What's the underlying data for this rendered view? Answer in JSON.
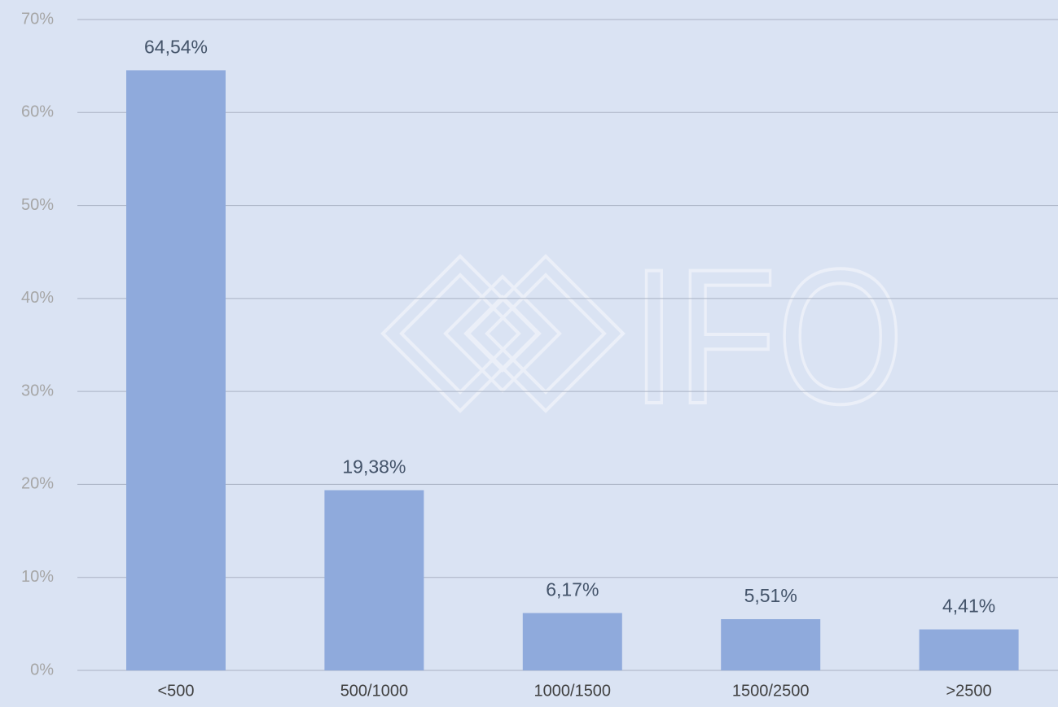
{
  "chart_data": {
    "type": "bar",
    "categories": [
      "<500",
      "500/1000",
      "1000/1500",
      "1500/2500",
      ">2500"
    ],
    "values": [
      64.54,
      19.38,
      6.17,
      5.51,
      4.41
    ],
    "value_labels": [
      "64,54%",
      "19,38%",
      "6,17%",
      "5,51%",
      "4,41%"
    ],
    "color": "#8faadc",
    "ylim": [
      0,
      70
    ],
    "yticks": [
      {
        "value": 0,
        "label": "0%"
      },
      {
        "value": 10,
        "label": "10%"
      },
      {
        "value": 20,
        "label": "20%"
      },
      {
        "value": 30,
        "label": "30%"
      },
      {
        "value": 40,
        "label": "40%"
      },
      {
        "value": 50,
        "label": "50%"
      },
      {
        "value": 60,
        "label": "60%"
      },
      {
        "value": 70,
        "label": "70%"
      }
    ],
    "grid": true,
    "watermark": "IFO"
  }
}
